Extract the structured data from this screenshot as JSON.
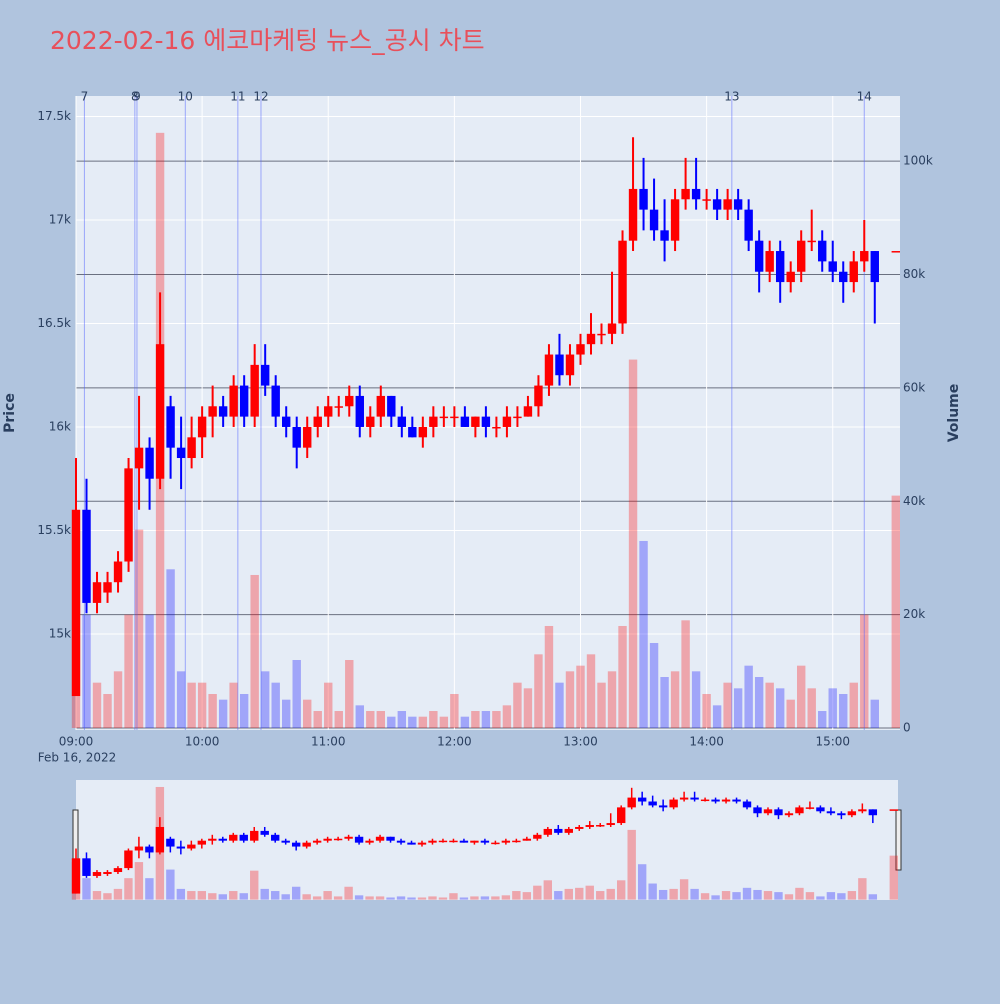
{
  "chart_data": {
    "type": "candlestick",
    "title": "2022-02-16 에코마케팅 뉴스_공시 차트",
    "x_label_date": "Feb 16, 2022",
    "y_label": "Price",
    "y2_label": "Volume",
    "increasing_color": "#ff0000",
    "decreasing_color": "#0000ff",
    "xlim": [
      "09:00",
      "15:32"
    ],
    "xticks": [
      "09:00",
      "10:00",
      "11:00",
      "12:00",
      "13:00",
      "14:00",
      "15:00"
    ],
    "ylim": [
      14536,
      17599
    ],
    "yticks": [
      {
        "value": 15000,
        "label": "15k"
      },
      {
        "value": 15500,
        "label": "15.5k"
      },
      {
        "value": 16000,
        "label": "16k"
      },
      {
        "value": 16500,
        "label": "16.5k"
      },
      {
        "value": 17000,
        "label": "17k"
      },
      {
        "value": 17500,
        "label": "17.5k"
      }
    ],
    "y2lim": [
      -350,
      111500
    ],
    "y2ticks": [
      0,
      {
        "value": 20000,
        "label": "20k"
      },
      {
        "value": 40000,
        "label": "40k"
      },
      {
        "value": 60000,
        "label": "60k"
      },
      {
        "value": 80000,
        "label": "80k"
      },
      {
        "value": 100000,
        "label": "100k"
      }
    ],
    "annotations": [
      {
        "text": "7",
        "x": "09:04"
      },
      {
        "text": "8",
        "x": "09:28"
      },
      {
        "text": "9",
        "x": "09:29"
      },
      {
        "text": "10",
        "x": "09:52"
      },
      {
        "text": "11",
        "x": "10:17"
      },
      {
        "text": "12",
        "x": "10:28"
      },
      {
        "text": "13",
        "x": "14:12"
      },
      {
        "text": "14",
        "x": "15:15"
      }
    ],
    "x": [
      "09:00",
      "09:05",
      "09:10",
      "09:15",
      "09:20",
      "09:25",
      "09:30",
      "09:35",
      "09:40",
      "09:45",
      "09:50",
      "09:55",
      "10:00",
      "10:05",
      "10:10",
      "10:15",
      "10:20",
      "10:25",
      "10:30",
      "10:35",
      "10:40",
      "10:45",
      "10:50",
      "10:55",
      "11:00",
      "11:05",
      "11:10",
      "11:15",
      "11:20",
      "11:25",
      "11:30",
      "11:35",
      "11:40",
      "11:45",
      "11:50",
      "11:55",
      "12:00",
      "12:05",
      "12:10",
      "12:15",
      "12:20",
      "12:25",
      "12:30",
      "12:35",
      "12:40",
      "12:45",
      "12:50",
      "12:55",
      "13:00",
      "13:05",
      "13:10",
      "13:15",
      "13:20",
      "13:25",
      "13:30",
      "13:35",
      "13:40",
      "13:45",
      "13:50",
      "13:55",
      "14:00",
      "14:05",
      "14:10",
      "14:15",
      "14:20",
      "14:25",
      "14:30",
      "14:35",
      "14:40",
      "14:45",
      "14:50",
      "14:55",
      "15:00",
      "15:05",
      "15:10",
      "15:15",
      "15:20",
      "15:30"
    ],
    "open": [
      14700,
      15600,
      15150,
      15200,
      15250,
      15350,
      15800,
      15900,
      15750,
      16100,
      15900,
      15850,
      15950,
      16050,
      16100,
      16050,
      16200,
      16050,
      16300,
      16200,
      16050,
      16000,
      15900,
      16000,
      16050,
      16100,
      16100,
      16150,
      16000,
      16050,
      16150,
      16050,
      16000,
      15950,
      16000,
      16050,
      16050,
      16050,
      16000,
      16050,
      16000,
      16000,
      16050,
      16050,
      16100,
      16200,
      16350,
      16250,
      16350,
      16400,
      16450,
      16450,
      16500,
      16900,
      17150,
      17050,
      16950,
      16900,
      17100,
      17150,
      17100,
      17100,
      17050,
      17100,
      17050,
      16900,
      16750,
      16850,
      16700,
      16750,
      16900,
      16900,
      16800,
      16750,
      16700,
      16800,
      16850,
      16850
    ],
    "high": [
      15850,
      15750,
      15300,
      15300,
      15400,
      15850,
      16150,
      15950,
      16650,
      16150,
      16050,
      16050,
      16100,
      16200,
      16150,
      16250,
      16250,
      16400,
      16400,
      16250,
      16100,
      16050,
      16050,
      16100,
      16150,
      16150,
      16200,
      16200,
      16100,
      16200,
      16150,
      16100,
      16050,
      16050,
      16100,
      16100,
      16100,
      16100,
      16050,
      16100,
      16050,
      16100,
      16100,
      16150,
      16250,
      16400,
      16450,
      16400,
      16450,
      16550,
      16500,
      16750,
      16950,
      17400,
      17300,
      17200,
      17100,
      17150,
      17300,
      17300,
      17150,
      17150,
      17150,
      17150,
      17100,
      16950,
      16900,
      16900,
      16800,
      16950,
      17050,
      16950,
      16900,
      16800,
      16850,
      17000,
      16850,
      16850
    ],
    "low": [
      14700,
      15100,
      15100,
      15150,
      15200,
      15300,
      15600,
      15600,
      15700,
      15750,
      15700,
      15800,
      15850,
      15950,
      16000,
      16000,
      16000,
      16000,
      16150,
      16000,
      15950,
      15800,
      15850,
      15950,
      16000,
      16050,
      16050,
      15950,
      15950,
      16000,
      16000,
      15950,
      15950,
      15900,
      15950,
      16000,
      16000,
      16000,
      15950,
      15950,
      15950,
      15950,
      16000,
      16050,
      16050,
      16150,
      16200,
      16200,
      16300,
      16350,
      16400,
      16400,
      16450,
      16850,
      16950,
      16900,
      16800,
      16850,
      17050,
      17050,
      17050,
      17000,
      17000,
      17000,
      16850,
      16650,
      16700,
      16600,
      16650,
      16700,
      16850,
      16750,
      16700,
      16600,
      16650,
      16750,
      16500,
      16850
    ],
    "close": [
      15600,
      15150,
      15250,
      15250,
      15350,
      15800,
      15900,
      15750,
      16400,
      15900,
      15850,
      15950,
      16050,
      16100,
      16050,
      16200,
      16050,
      16300,
      16200,
      16050,
      16000,
      15900,
      16000,
      16050,
      16100,
      16100,
      16150,
      16000,
      16050,
      16150,
      16050,
      16000,
      15950,
      16000,
      16050,
      16050,
      16050,
      16000,
      16050,
      16000,
      16000,
      16050,
      16050,
      16100,
      16200,
      16350,
      16250,
      16350,
      16400,
      16450,
      16450,
      16500,
      16900,
      17150,
      17050,
      16950,
      16900,
      17100,
      17150,
      17100,
      17100,
      17050,
      17100,
      17050,
      16900,
      16750,
      16850,
      16700,
      16750,
      16900,
      16900,
      16800,
      16750,
      16700,
      16800,
      16850,
      16700,
      16850
    ],
    "volume": [
      35000,
      20000,
      8000,
      6000,
      10000,
      20000,
      35000,
      20000,
      105000,
      28000,
      10000,
      8000,
      8000,
      6000,
      5000,
      8000,
      6000,
      27000,
      10000,
      8000,
      5000,
      12000,
      5000,
      3000,
      8000,
      3000,
      12000,
      4000,
      3000,
      3000,
      2000,
      3000,
      2000,
      2000,
      3000,
      2000,
      6000,
      2000,
      3000,
      3000,
      3000,
      4000,
      8000,
      7000,
      13000,
      18000,
      8000,
      10000,
      11000,
      13000,
      8000,
      10000,
      18000,
      65000,
      33000,
      15000,
      9000,
      10000,
      19000,
      10000,
      6000,
      4000,
      8000,
      7000,
      11000,
      9000,
      8000,
      7000,
      5000,
      11000,
      7000,
      3000,
      7000,
      6000,
      8000,
      20000,
      5000,
      41000
    ]
  }
}
